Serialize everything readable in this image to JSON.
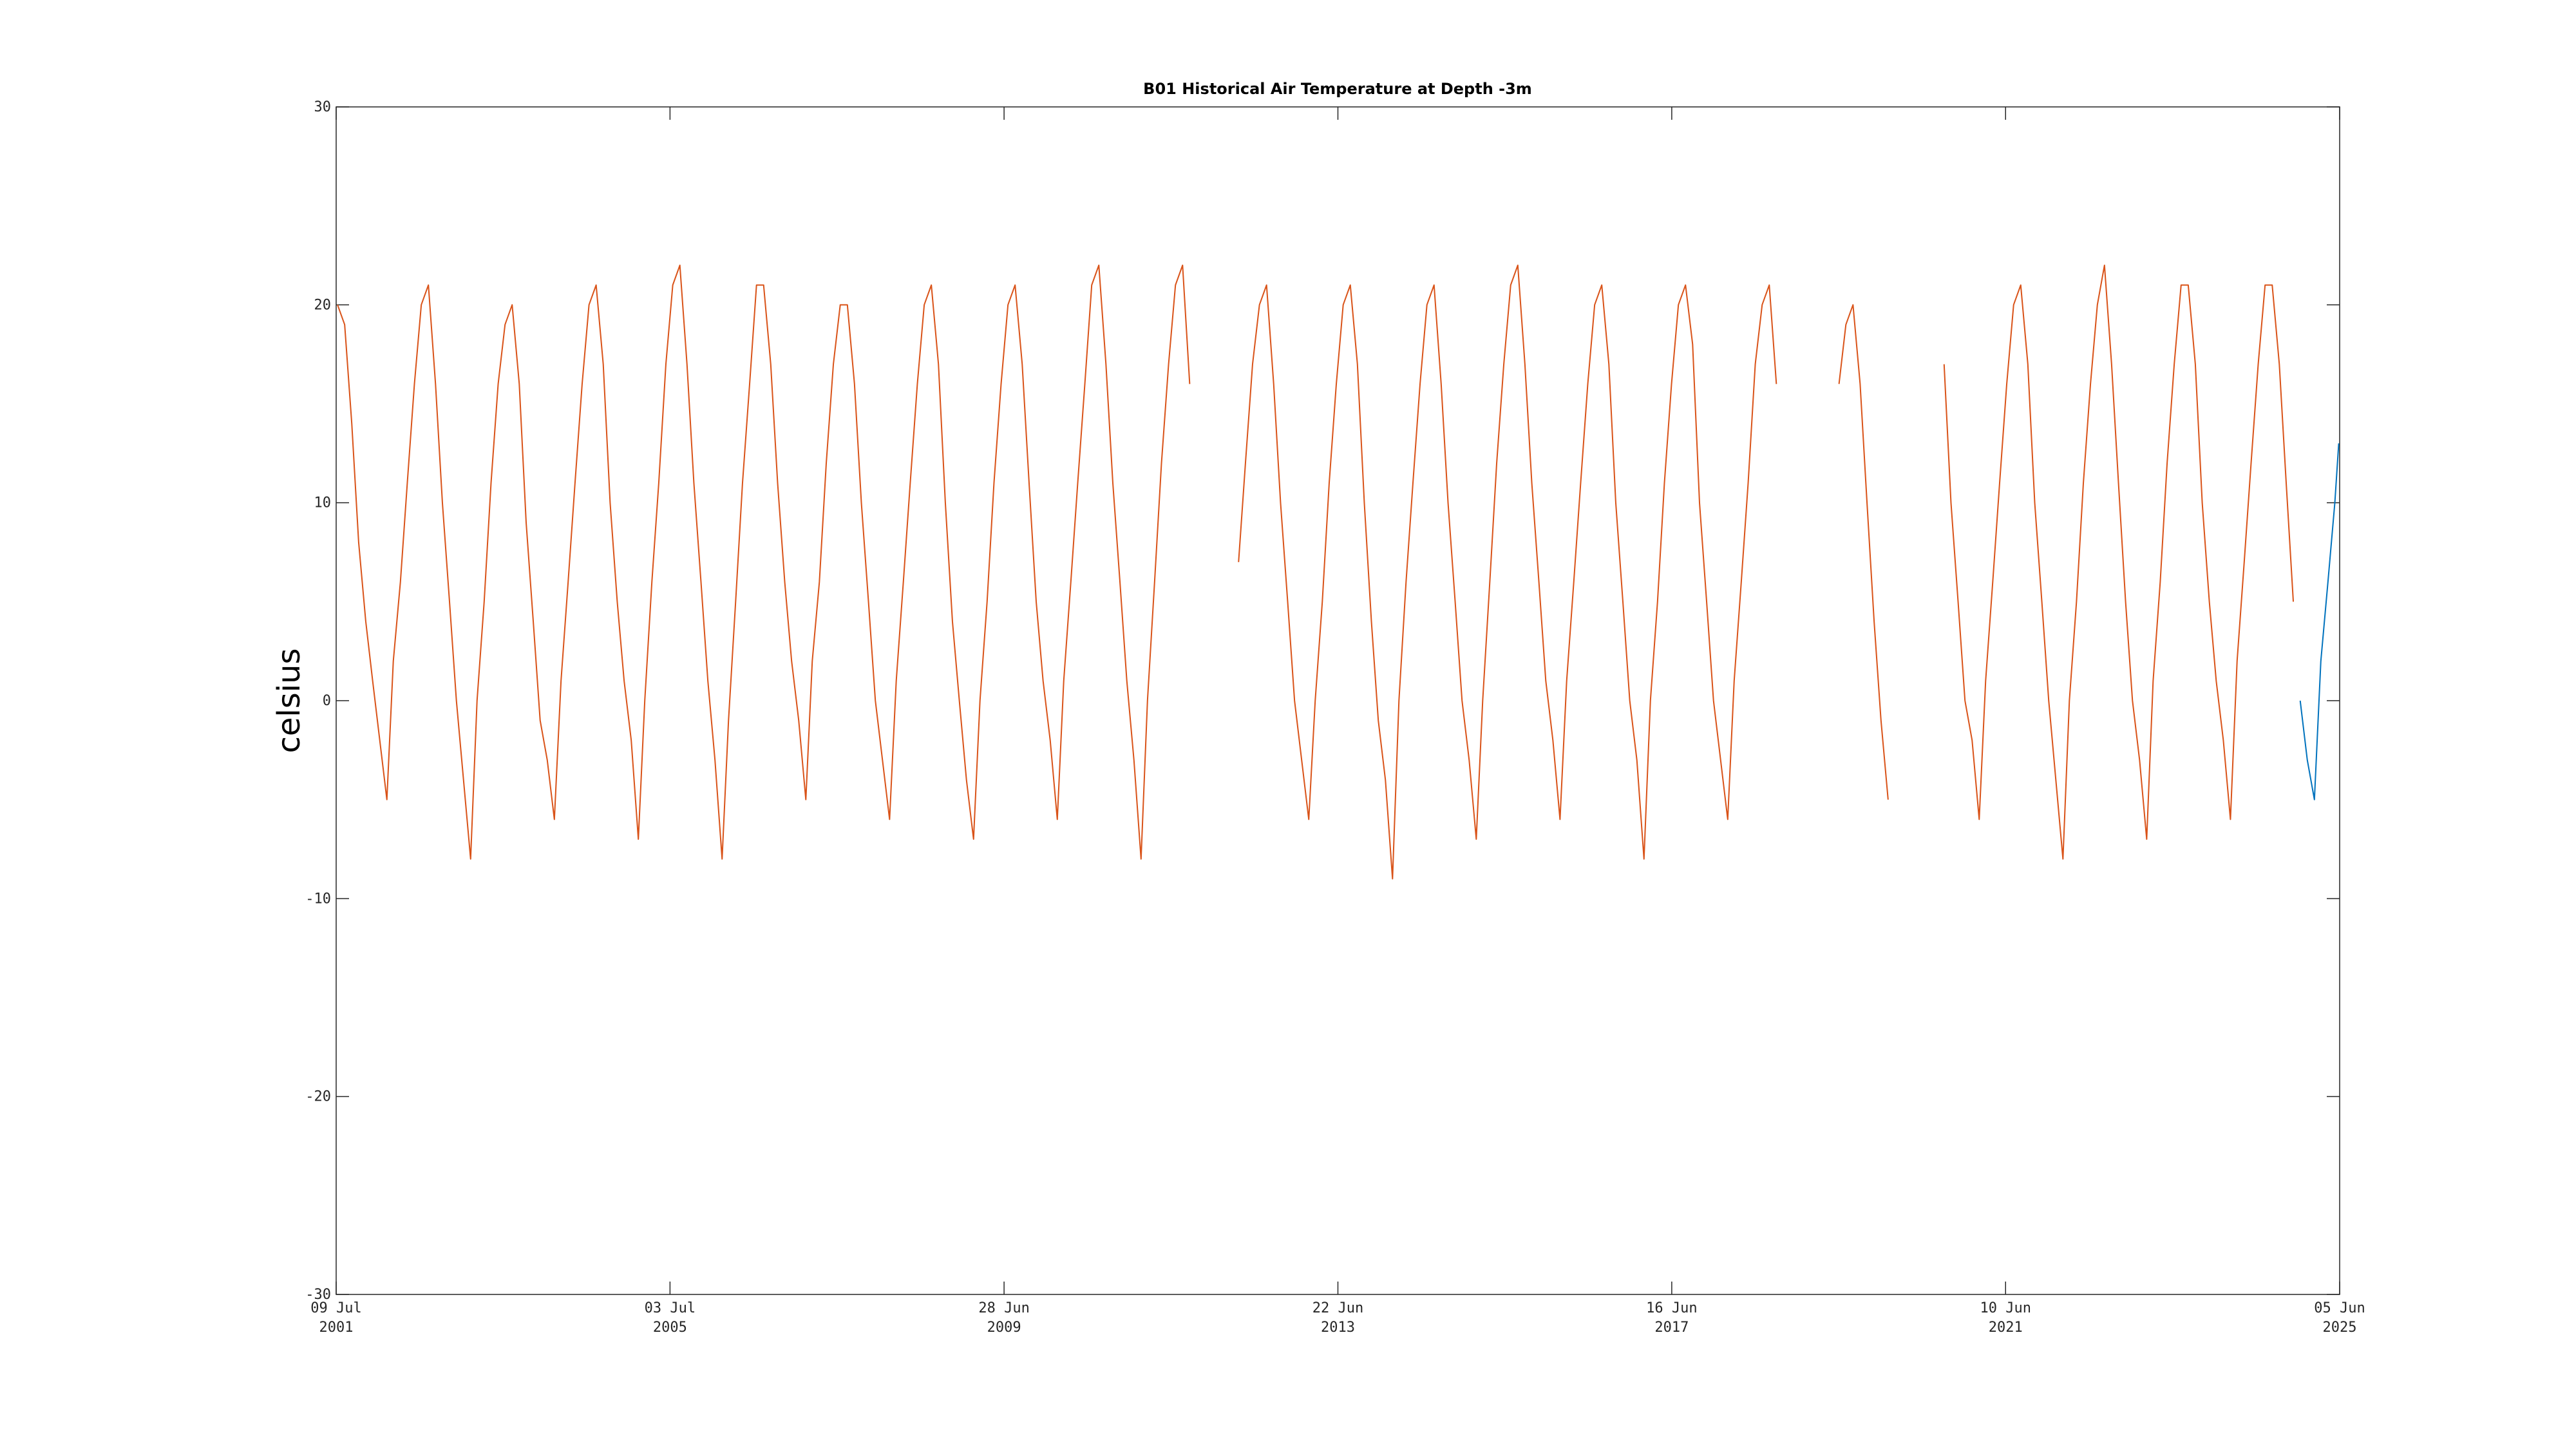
{
  "chart_data": {
    "type": "line",
    "title": "B01 Historical Air Temperature at Depth -3m",
    "y_label": "celsius",
    "xlim": [
      "2001-07-09",
      "2025-06-05"
    ],
    "xticks": [
      {
        "value": "2001-07-09",
        "label": [
          "09 Jul",
          "2001"
        ]
      },
      {
        "value": "2005-07-03",
        "label": [
          "03 Jul",
          "2005"
        ]
      },
      {
        "value": "2009-06-28",
        "label": [
          "28 Jun",
          "2009"
        ]
      },
      {
        "value": "2013-06-22",
        "label": [
          "22 Jun",
          "2013"
        ]
      },
      {
        "value": "2017-06-16",
        "label": [
          "16 Jun",
          "2017"
        ]
      },
      {
        "value": "2021-06-10",
        "label": [
          "10 Jun",
          "2021"
        ]
      },
      {
        "value": "2025-06-05",
        "label": [
          "05 Jun",
          "2025"
        ]
      }
    ],
    "ylim": [
      -30,
      30
    ],
    "yticks": [
      -30,
      -20,
      -10,
      0,
      10,
      20,
      30
    ],
    "grid": false,
    "series": [
      {
        "color": "#d95319",
        "x": [
          "2001-07-15",
          "2001-08-15",
          "2001-09-15",
          "2001-10-15",
          "2001-11-15",
          "2001-12-15",
          "2002-01-15",
          "2002-02-15",
          "2002-03-15",
          "2002-04-15",
          "2002-05-15",
          "2002-06-15",
          "2002-07-15",
          "2002-08-15",
          "2002-09-15",
          "2002-10-15",
          "2002-11-15",
          "2002-12-15",
          "2003-01-15",
          "2003-02-15",
          "2003-03-15",
          "2003-04-15",
          "2003-05-15",
          "2003-06-15",
          "2003-07-15",
          "2003-08-15",
          "2003-09-15",
          "2003-10-15",
          "2003-11-15",
          "2003-12-15",
          "2004-01-15",
          "2004-02-15",
          "2004-03-15",
          "2004-04-15",
          "2004-05-15",
          "2004-06-15",
          "2004-07-15",
          "2004-08-15",
          "2004-09-15",
          "2004-10-15",
          "2004-11-15",
          "2004-12-15",
          "2005-01-15",
          "2005-02-15",
          "2005-03-15",
          "2005-04-15",
          "2005-05-15",
          "2005-06-15",
          "2005-07-15",
          "2005-08-15",
          "2005-09-15",
          "2005-10-15",
          "2005-11-15",
          "2005-12-15",
          "2006-01-15",
          "2006-02-15",
          "2006-03-15",
          "2006-04-15",
          "2006-05-15",
          "2006-06-15",
          "2006-07-15",
          "2006-08-15",
          "2006-09-15",
          "2006-10-15",
          "2006-11-15",
          "2006-12-15",
          "2007-01-15",
          "2007-02-15",
          "2007-03-15",
          "2007-04-15",
          "2007-05-15",
          "2007-06-15",
          "2007-07-15",
          "2007-08-15",
          "2007-09-15",
          "2007-10-15",
          "2007-11-15",
          "2007-12-15",
          "2008-01-15",
          "2008-02-15",
          "2008-03-15",
          "2008-04-15",
          "2008-05-15",
          "2008-06-15",
          "2008-07-15",
          "2008-08-15",
          "2008-09-15",
          "2008-10-15",
          "2008-11-15",
          "2008-12-15",
          "2009-01-15",
          "2009-02-15",
          "2009-03-15",
          "2009-04-15",
          "2009-05-15",
          "2009-06-15",
          "2009-07-15",
          "2009-08-15",
          "2009-09-15",
          "2009-10-15",
          "2009-11-15",
          "2009-12-15",
          "2010-01-15",
          "2010-02-15",
          "2010-03-15",
          "2010-04-15",
          "2010-05-15",
          "2010-06-15",
          "2010-07-15",
          "2010-08-15",
          "2010-09-15",
          "2010-10-15",
          "2010-11-15",
          "2010-12-15",
          "2011-01-15",
          "2011-02-15",
          "2011-03-15",
          "2011-04-15",
          "2011-05-15",
          "2011-06-15",
          "2011-07-15",
          "2011-08-15",
          "2011-09-15",
          "2011-10-15",
          "2011-11-15",
          "2011-12-15",
          "2012-01-15",
          "2012-02-15",
          "2012-03-15",
          "2012-04-15",
          "2012-05-15",
          "2012-06-15",
          "2012-07-15",
          "2012-08-15",
          "2012-09-15",
          "2012-10-15",
          "2012-11-15",
          "2012-12-15",
          "2013-01-15",
          "2013-02-15",
          "2013-03-15",
          "2013-04-15",
          "2013-05-15",
          "2013-06-15",
          "2013-07-15",
          "2013-08-15",
          "2013-09-15",
          "2013-10-15",
          "2013-11-15",
          "2013-12-15",
          "2014-01-15",
          "2014-02-15",
          "2014-03-15",
          "2014-04-15",
          "2014-05-15",
          "2014-06-15",
          "2014-07-15",
          "2014-08-15",
          "2014-09-15",
          "2014-10-15",
          "2014-11-15",
          "2014-12-15",
          "2015-01-15",
          "2015-02-15",
          "2015-03-15",
          "2015-04-15",
          "2015-05-15",
          "2015-06-15",
          "2015-07-15",
          "2015-08-15",
          "2015-09-15",
          "2015-10-15",
          "2015-11-15",
          "2015-12-15",
          "2016-01-15",
          "2016-02-15",
          "2016-03-15",
          "2016-04-15",
          "2016-05-15",
          "2016-06-15",
          "2016-07-15",
          "2016-08-15",
          "2016-09-15",
          "2016-10-15",
          "2016-11-15",
          "2016-12-15",
          "2017-01-15",
          "2017-02-15",
          "2017-03-15",
          "2017-04-15",
          "2017-05-15",
          "2017-06-15",
          "2017-07-15",
          "2017-08-15",
          "2017-09-15",
          "2017-10-15",
          "2017-11-15",
          "2017-12-15",
          "2018-01-15",
          "2018-02-15",
          "2018-03-15",
          "2018-04-15",
          "2018-05-15",
          "2018-06-15",
          "2018-07-15",
          "2018-08-15",
          "2018-09-15",
          "2018-10-15",
          "2018-11-15",
          "2018-12-15",
          "2019-01-15",
          "2019-02-15",
          "2019-03-15",
          "2019-04-15",
          "2019-05-15",
          "2019-06-15",
          "2019-07-15",
          "2019-08-15",
          "2019-09-15",
          "2019-10-15",
          "2019-11-15",
          "2019-12-15",
          "2020-01-15",
          "2020-02-15",
          "2020-03-15",
          "2020-04-15",
          "2020-05-15",
          "2020-06-15",
          "2020-07-15",
          "2020-08-15",
          "2020-09-15",
          "2020-10-15",
          "2020-11-15",
          "2020-12-15",
          "2021-01-15",
          "2021-02-15",
          "2021-03-15",
          "2021-04-15",
          "2021-05-15",
          "2021-06-15",
          "2021-07-15",
          "2021-08-15",
          "2021-09-15",
          "2021-10-15",
          "2021-11-15",
          "2021-12-15",
          "2022-01-15",
          "2022-02-15",
          "2022-03-15",
          "2022-04-15",
          "2022-05-15",
          "2022-06-15",
          "2022-07-15",
          "2022-08-15",
          "2022-09-15",
          "2022-10-15",
          "2022-11-15",
          "2022-12-15",
          "2023-01-15",
          "2023-02-15",
          "2023-03-15",
          "2023-04-15",
          "2023-05-15",
          "2023-06-15",
          "2023-07-15",
          "2023-08-15",
          "2023-09-15",
          "2023-10-15",
          "2023-11-15",
          "2023-12-15",
          "2024-01-15",
          "2024-02-15",
          "2024-03-15",
          "2024-04-15",
          "2024-05-15",
          "2024-06-15",
          "2024-07-15",
          "2024-08-15",
          "2024-09-15",
          "2024-10-15",
          "2024-11-15"
        ],
        "values": [
          20,
          19,
          14,
          8,
          4,
          1,
          -2,
          -5,
          2,
          6,
          11,
          16,
          20,
          21,
          16,
          10,
          5,
          0,
          -4,
          -8,
          0,
          5,
          11,
          16,
          19,
          20,
          16,
          9,
          4,
          -1,
          -3,
          -6,
          1,
          6,
          11,
          16,
          20,
          21,
          17,
          10,
          5,
          1,
          -2,
          -7,
          0,
          6,
          11,
          17,
          21,
          22,
          17,
          11,
          6,
          1,
          -3,
          -8,
          -1,
          5,
          11,
          16,
          21,
          21,
          17,
          11,
          6,
          2,
          -1,
          -5,
          2,
          6,
          12,
          17,
          20,
          20,
          16,
          10,
          5,
          0,
          -3,
          -6,
          1,
          6,
          11,
          16,
          20,
          21,
          17,
          10,
          4,
          0,
          -4,
          -7,
          0,
          5,
          11,
          16,
          20,
          21,
          17,
          11,
          5,
          1,
          -2,
          -6,
          1,
          6,
          11,
          16,
          21,
          22,
          17,
          11,
          6,
          1,
          -3,
          -8,
          0,
          6,
          12,
          17,
          21,
          22,
          16,
          null,
          null,
          null,
          null,
          null,
          null,
          7,
          12,
          17,
          20,
          21,
          16,
          10,
          5,
          0,
          -3,
          -6,
          0,
          5,
          11,
          16,
          20,
          21,
          17,
          10,
          4,
          -1,
          -4,
          -9,
          0,
          6,
          11,
          16,
          20,
          21,
          16,
          10,
          5,
          0,
          -3,
          -7,
          0,
          6,
          12,
          17,
          21,
          22,
          17,
          11,
          6,
          1,
          -2,
          -6,
          1,
          6,
          11,
          16,
          20,
          21,
          17,
          10,
          5,
          0,
          -3,
          -8,
          0,
          5,
          11,
          16,
          20,
          21,
          18,
          10,
          5,
          0,
          -3,
          -6,
          1,
          6,
          11,
          17,
          20,
          21,
          16,
          null,
          null,
          null,
          null,
          null,
          null,
          null,
          null,
          16,
          19,
          20,
          16,
          10,
          4,
          -1,
          -5,
          null,
          null,
          null,
          null,
          null,
          null,
          null,
          17,
          10,
          5,
          0,
          -2,
          -6,
          1,
          6,
          11,
          16,
          20,
          21,
          17,
          10,
          5,
          0,
          -4,
          -8,
          0,
          5,
          11,
          16,
          20,
          22,
          17,
          11,
          5,
          0,
          -3,
          -7,
          1,
          6,
          12,
          17,
          21,
          21,
          17,
          10,
          5,
          1,
          -2,
          -6,
          2,
          7,
          12,
          17,
          21,
          21,
          17,
          11,
          5
        ]
      },
      {
        "color": "#0072bd",
        "x": [
          "2024-12-15",
          "2025-01-15",
          "2025-02-15",
          "2025-03-15",
          "2025-04-15",
          "2025-05-15",
          "2025-06-01"
        ],
        "values": [
          0,
          -3,
          -5,
          2,
          6,
          10,
          13
        ]
      }
    ]
  }
}
